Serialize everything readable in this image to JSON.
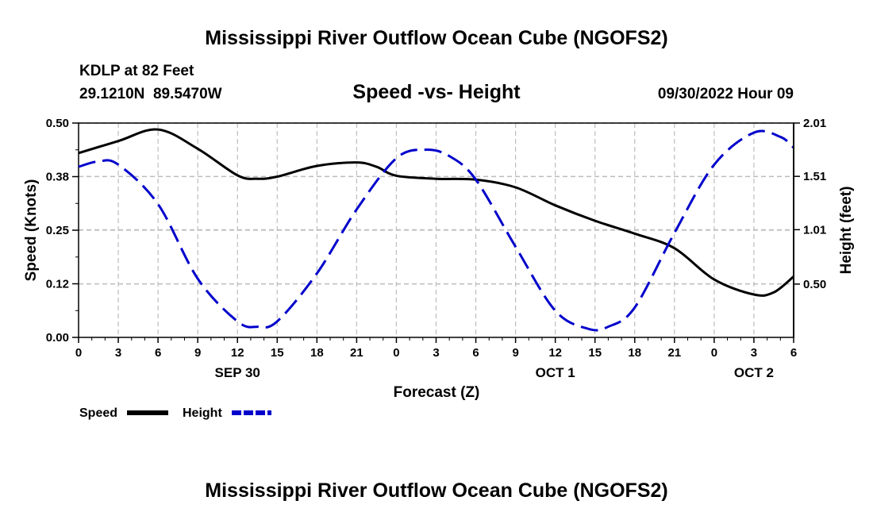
{
  "page": {
    "main_title": "Mississippi River Outflow Ocean Cube (NGOFS2)",
    "station": "KDLP at 82 Feet",
    "coords": "29.1210N  89.5470W",
    "subtitle": "Speed -vs- Height",
    "datetime": "09/30/2022 Hour 09",
    "footer_title": "Mississippi River Outflow Ocean Cube (NGOFS2)"
  },
  "chart_data": {
    "type": "line",
    "title": "Speed -vs- Height",
    "xlabel": "Forecast (Z)",
    "ylabel_left": "Speed (Knots)",
    "ylabel_right": "Height (feet)",
    "x_range": [
      0,
      54
    ],
    "x_ticks": [
      0,
      3,
      6,
      9,
      12,
      15,
      18,
      21,
      24,
      27,
      30,
      33,
      36,
      39,
      42,
      45,
      48,
      51,
      54
    ],
    "x_tick_labels": [
      "0",
      "3",
      "6",
      "9",
      "12",
      "15",
      "18",
      "21",
      "0",
      "3",
      "6",
      "9",
      "12",
      "15",
      "18",
      "21",
      "0",
      "3",
      "6"
    ],
    "day_labels": [
      {
        "label": "SEP 30",
        "x": 12
      },
      {
        "label": "OCT 1",
        "x": 36
      },
      {
        "label": "OCT 2",
        "x": 51
      }
    ],
    "ylim_left": [
      0,
      0.5
    ],
    "yticks_left": [
      0.0,
      0.125,
      0.25,
      0.375,
      0.5
    ],
    "ytick_labels_left": [
      "0.00",
      "0.12",
      "0.25",
      "0.38",
      "0.50"
    ],
    "ylim_right": [
      0.0,
      2.01
    ],
    "yticks_right": [
      0.5,
      1.01,
      1.51,
      2.01
    ],
    "ytick_labels_right": [
      "0.50",
      "1.01",
      "1.51",
      "2.01"
    ],
    "series": [
      {
        "name": "Speed",
        "axis": "left",
        "color": "#000000",
        "style": "solid",
        "x": [
          0,
          3,
          6,
          9,
          12,
          13.5,
          15,
          18,
          21,
          22.5,
          24,
          27,
          30,
          33,
          36,
          39,
          42,
          45,
          48,
          51,
          52.5,
          54
        ],
        "y": [
          0.43,
          0.458,
          0.485,
          0.44,
          0.378,
          0.37,
          0.375,
          0.4,
          0.408,
          0.398,
          0.377,
          0.37,
          0.368,
          0.35,
          0.308,
          0.272,
          0.242,
          0.208,
          0.135,
          0.1,
          0.105,
          0.142
        ]
      },
      {
        "name": "Height",
        "axis": "right",
        "color": "#0000cc",
        "style": "dashed",
        "x": [
          0,
          1.5,
          3,
          6,
          9,
          12,
          13.5,
          15,
          18,
          21,
          24,
          26.2,
          28,
          30,
          33,
          36,
          38.5,
          40,
          42,
          45,
          48,
          51,
          53,
          54
        ],
        "y": [
          1.6,
          1.65,
          1.62,
          1.25,
          0.55,
          0.15,
          0.1,
          0.15,
          0.6,
          1.2,
          1.68,
          1.76,
          1.7,
          1.48,
          0.85,
          0.25,
          0.08,
          0.1,
          0.28,
          0.98,
          1.62,
          1.92,
          1.88,
          1.78
        ]
      }
    ],
    "legend": [
      {
        "label": "Speed",
        "color": "#000000",
        "style": "solid"
      },
      {
        "label": "Height",
        "color": "#0000cc",
        "style": "dashed"
      }
    ],
    "legend_position": "bottom-left"
  }
}
